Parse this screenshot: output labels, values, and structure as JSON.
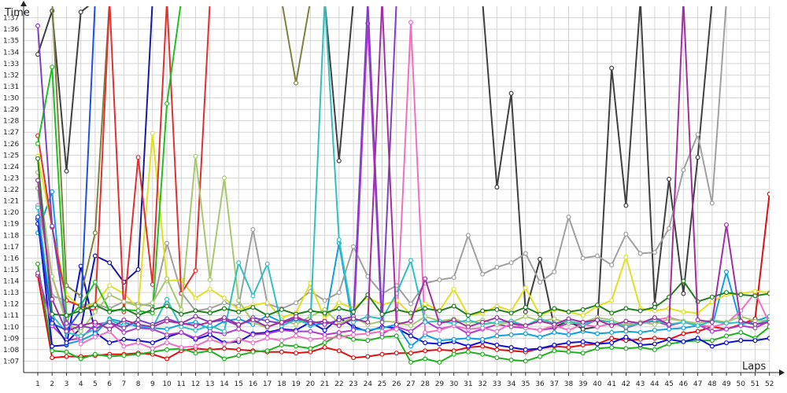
{
  "chart_data": {
    "type": "line",
    "ylabel": "Time",
    "xlabel": "Laps",
    "x": [
      1,
      2,
      3,
      4,
      5,
      6,
      7,
      8,
      9,
      10,
      11,
      12,
      13,
      14,
      15,
      16,
      17,
      18,
      19,
      20,
      21,
      22,
      23,
      24,
      25,
      26,
      27,
      28,
      29,
      30,
      31,
      32,
      33,
      34,
      35,
      36,
      37,
      38,
      39,
      40,
      41,
      42,
      43,
      44,
      45,
      46,
      47,
      48,
      49,
      50,
      51,
      52
    ],
    "x_tick_labels": [
      "1",
      "2",
      "3",
      "4",
      "5",
      "6",
      "7",
      "8",
      "9",
      "10",
      "11",
      "12",
      "13",
      "14",
      "15",
      "16",
      "17",
      "18",
      "19",
      "20",
      "21",
      "22",
      "23",
      "24",
      "25",
      "26",
      "27",
      "28",
      "29",
      "30",
      "31",
      "32",
      "33",
      "34",
      "35",
      "36",
      "37",
      "38",
      "39",
      "40",
      "41",
      "42",
      "43",
      "44",
      "45",
      "46",
      "47",
      "48",
      "49",
      "50",
      "51",
      "52"
    ],
    "y_tick_labels": [
      "1:07",
      "1:08",
      "1:09",
      "1:10",
      "1:11",
      "1:12",
      "1:13",
      "1:14",
      "1:15",
      "1:16",
      "1:17",
      "1:18",
      "1:19",
      "1:20",
      "1:21",
      "1:22",
      "1:23",
      "1:24",
      "1:25",
      "1:26",
      "1:27",
      "1:28",
      "1:29",
      "1:30",
      "1:31",
      "1:32",
      "1:33",
      "1:34",
      "1:35",
      "1:36",
      "1:37"
    ],
    "y_unit": "seconds",
    "ylim": [
      66,
      98
    ],
    "grid": true,
    "series": [
      {
        "color": "#e01010",
        "values": [
          74.5,
          67.3,
          67.4,
          67.4,
          67.5,
          67.6,
          67.6,
          67.7,
          67.6,
          67.2,
          67.9,
          68.1,
          68.0,
          68.1,
          68.0,
          67.9,
          67.8,
          67.8,
          67.7,
          67.8,
          68.2,
          67.9,
          67.3,
          67.4,
          67.6,
          67.7,
          67.7,
          67.9,
          68.0,
          67.9,
          68.2,
          68.3,
          68.0,
          67.9,
          67.8,
          68.1,
          68.3,
          68.2,
          68.4,
          68.5,
          69.0,
          68.8,
          68.9,
          69.0,
          68.9,
          69.4,
          69.6,
          70.0,
          69.8,
          70.2,
          70.7,
          81.6
        ]
      },
      {
        "color": "#20b020",
        "values": [
          75.5,
          67.9,
          67.8,
          67.2,
          67.6,
          67.4,
          67.5,
          67.6,
          67.8,
          68.0,
          68.1,
          67.7,
          67.9,
          67.2,
          67.5,
          67.8,
          67.9,
          68.4,
          68.3,
          68.1,
          68.6,
          69.3,
          68.9,
          68.8,
          69.1,
          69.2,
          66.9,
          67.2,
          66.9,
          67.6,
          67.8,
          67.6,
          67.3,
          67.1,
          67.0,
          67.4,
          67.9,
          67.8,
          67.7,
          68.1,
          68.2,
          68.1,
          68.2,
          68.0,
          68.5,
          68.7,
          68.8,
          68.8,
          69.2,
          69.5,
          69.0,
          70.0
        ]
      },
      {
        "color": "#1010d0",
        "values": [
          79.4,
          68.3,
          68.4,
          75.3,
          69.5,
          68.6,
          68.9,
          68.8,
          68.6,
          69.1,
          69.5,
          68.9,
          69.3,
          68.6,
          68.7,
          69.4,
          69.5,
          69.8,
          69.7,
          70.4,
          69.7,
          70.8,
          70.0,
          69.6,
          70.0,
          69.9,
          69.2,
          68.6,
          68.5,
          68.7,
          68.3,
          68.7,
          68.4,
          68.2,
          68.0,
          68.1,
          68.4,
          68.6,
          68.7,
          68.5,
          68.6,
          69.1,
          68.4,
          68.5,
          68.9,
          68.7,
          69.0,
          68.3,
          68.6,
          68.8,
          68.8,
          69.0
        ]
      },
      {
        "color": "#10a0e0",
        "values": [
          78.2,
          81.8,
          68.5,
          68.8,
          69.4,
          70.7,
          70.4,
          70.0,
          69.9,
          69.8,
          70.2,
          70.4,
          69.8,
          70.5,
          70.7,
          70.2,
          71.0,
          70.4,
          70.8,
          70.1,
          70.3,
          77.3,
          69.8,
          69.7,
          69.9,
          70.2,
          68.3,
          69.3,
          68.8,
          68.9,
          69.0,
          68.9,
          69.2,
          69.3,
          69.4,
          69.1,
          69.5,
          69.3,
          69.6,
          69.4,
          69.5,
          69.6,
          69.5,
          69.7,
          69.8,
          69.9,
          70.1,
          70.0,
          74.8,
          70.2,
          70.5,
          70.9
        ]
      },
      {
        "color": "#b03bd0",
        "values": [
          74.7,
          70.1,
          68.8,
          69.0,
          70.2,
          70.4,
          69.5,
          69.9,
          69.8,
          69.3,
          69.5,
          69.0,
          69.6,
          69.4,
          69.8,
          69.3,
          69.4,
          69.7,
          69.6,
          69.6,
          69.3,
          69.5,
          69.7,
          96.5,
          69.4,
          70.0,
          69.6,
          70.5,
          69.8,
          70.1,
          69.4,
          69.8,
          70.2,
          70.0,
          69.9,
          69.7,
          69.9,
          70.3,
          70.1,
          70.6,
          70.4,
          69.9,
          70.3,
          70.5,
          70.1,
          70.4,
          70.2,
          69.6,
          69.8,
          70.1,
          69.9,
          70.5
        ]
      },
      {
        "color": "#404040",
        "values": [
          93.8,
          97.6,
          83.6,
          97.5,
          98.5,
          98.5,
          98.5,
          98.5,
          98.5,
          98.5,
          98.5,
          98.5,
          98.5,
          98.5,
          98.5,
          98.5,
          98.5,
          98.5,
          98.5,
          98.5,
          98.5,
          84.5,
          98.5,
          98.5,
          98.5,
          98.5,
          98.5,
          98.5,
          98.5,
          98.5,
          98.5,
          98.5,
          82.2,
          90.4,
          71.3,
          75.9,
          70.0,
          70.5,
          69.8,
          70.0,
          92.6,
          80.6,
          98.5,
          72.0,
          82.9,
          72.9,
          84.8,
          98.5,
          98.5,
          98.5,
          98.5,
          98.5
        ]
      },
      {
        "color": "#808040",
        "values": [
          98.5,
          98.5,
          73.6,
          72.7,
          78.2,
          98.5,
          98.5,
          98.5,
          98.5,
          98.5,
          98.5,
          98.5,
          98.5,
          98.5,
          98.5,
          98.5,
          98.5,
          98.5,
          91.3,
          98.5,
          98.5,
          98.5,
          98.5,
          98.5,
          98.5,
          98.5,
          98.5,
          98.5,
          98.5,
          98.5,
          98.5,
          98.5,
          98.5,
          98.5,
          98.5,
          98.5,
          98.5,
          98.5,
          98.5,
          98.5,
          98.5,
          98.5,
          98.5,
          98.5,
          98.5,
          98.5,
          98.5,
          98.5,
          98.5,
          98.5,
          98.5,
          98.5
        ]
      },
      {
        "color": "#f070c0",
        "values": [
          80.6,
          74.4,
          70.6,
          68.5,
          69.1,
          69.6,
          68.3,
          68.6,
          68.1,
          68.6,
          68.2,
          68.3,
          68.9,
          68.5,
          68.9,
          68.6,
          69.0,
          68.8,
          69.2,
          68.9,
          69.0,
          69.1,
          69.3,
          69.4,
          69.6,
          69.8,
          96.6,
          69.5,
          69.7,
          70.1,
          69.8,
          69.9,
          69.6,
          70.3,
          69.9,
          69.7,
          70.1,
          69.7,
          70.2,
          70.0,
          70.3,
          70.2,
          70.4,
          70.6,
          70.8,
          70.5,
          70.2,
          70.0,
          70.3,
          71.4,
          73.0,
          70.3
        ]
      },
      {
        "color": "#a0a0a0",
        "values": [
          82.1,
          72.7,
          72.3,
          71.9,
          72.0,
          71.6,
          72.2,
          72.0,
          71.8,
          77.3,
          73.0,
          71.4,
          71.6,
          72.1,
          71.8,
          78.5,
          72.0,
          71.6,
          72.1,
          73.1,
          72.3,
          73.0,
          77.0,
          74.4,
          72.9,
          73.6,
          72.0,
          73.8,
          74.1,
          74.3,
          78.0,
          74.6,
          75.2,
          75.6,
          76.4,
          73.9,
          74.8,
          79.6,
          76.0,
          76.2,
          75.4,
          78.1,
          76.4,
          76.5,
          78.6,
          83.7,
          86.8,
          80.8,
          98.5,
          98.5,
          98.5,
          98.5
        ]
      },
      {
        "color": "#e0e020",
        "values": [
          84.9,
          78.7,
          72.8,
          71.7,
          72.0,
          73.6,
          72.9,
          71.6,
          86.9,
          74.0,
          74.1,
          72.5,
          73.3,
          72.5,
          71.5,
          71.9,
          72.1,
          70.8,
          71.2,
          73.8,
          70.7,
          72.1,
          71.6,
          72.6,
          71.9,
          72.3,
          71.1,
          72.0,
          71.4,
          73.3,
          71.0,
          71.2,
          71.8,
          71.4,
          73.4,
          71.0,
          71.5,
          71.3,
          71.0,
          71.8,
          72.3,
          76.1,
          71.6,
          71.4,
          71.6,
          71.3,
          71.2,
          72.2,
          72.8,
          72.9,
          73.1,
          73.0
        ]
      },
      {
        "color": "#1a1aa0",
        "values": [
          79.0,
          70.6,
          68.6,
          69.9,
          76.2,
          75.6,
          73.9,
          75.0,
          98.5,
          98.5,
          98.5,
          98.5,
          98.5,
          98.5,
          98.5,
          98.5,
          98.5,
          98.5,
          98.5,
          98.5,
          98.5,
          98.5,
          98.5,
          98.5,
          98.5,
          98.5,
          98.5,
          98.5,
          98.5,
          98.5,
          98.5,
          98.5,
          98.5,
          98.5,
          98.5,
          98.5,
          98.5,
          98.5,
          98.5,
          98.5,
          98.5,
          98.5,
          98.5,
          98.5,
          98.5,
          98.5,
          98.5,
          98.5,
          98.5,
          98.5,
          98.5,
          98.5
        ]
      },
      {
        "color": "#e03030",
        "values": [
          86.7,
          78.7,
          72.3,
          71.8,
          71.4,
          98.5,
          71.3,
          84.8,
          73.7,
          98.5,
          72.9,
          74.9,
          98.5,
          98.5,
          98.5,
          98.5,
          98.5,
          98.5,
          98.5,
          98.5,
          98.5,
          98.5,
          98.5,
          98.5,
          98.5,
          98.5,
          98.5,
          98.5,
          98.5,
          98.5,
          98.5,
          98.5,
          98.5,
          98.5,
          98.5,
          98.5,
          98.5,
          98.5,
          98.5,
          98.5,
          98.5,
          98.5,
          98.5,
          98.5,
          98.5,
          98.5,
          98.5,
          98.5,
          98.5,
          98.5,
          98.5,
          98.5
        ]
      },
      {
        "color": "#20c020",
        "values": [
          86.0,
          92.7,
          70.7,
          71.9,
          73.9,
          71.4,
          71.5,
          71.4,
          71.2,
          89.5,
          98.5,
          98.5,
          98.5,
          98.5,
          98.5,
          98.5,
          98.5,
          98.5,
          98.5,
          98.5,
          98.5,
          98.5,
          98.5,
          98.5,
          98.5,
          98.5,
          98.5,
          98.5,
          98.5,
          98.5,
          98.5,
          98.5,
          98.5,
          98.5,
          98.5,
          98.5,
          98.5,
          98.5,
          98.5,
          98.5,
          98.5,
          98.5,
          98.5,
          98.5,
          98.5,
          98.5,
          98.5,
          98.5,
          98.5,
          98.5,
          98.5,
          98.5
        ]
      },
      {
        "color": "#a8c870",
        "values": [
          83.5,
          74.4,
          70.3,
          69.6,
          71.3,
          72.8,
          72.2,
          71.8,
          72.1,
          74.2,
          71.5,
          84.9,
          74.1,
          83.0,
          72.3,
          70.4,
          69.9,
          70.6,
          70.2,
          70.9,
          71.5,
          70.3,
          70.8,
          70.2,
          70.5,
          70.4,
          70.1,
          70.9,
          70.5,
          70.7,
          70.3,
          70.6,
          70.2,
          70.4,
          70.9,
          70.5,
          70.7,
          70.3,
          70.4,
          70.8,
          70.6,
          70.1,
          70.4,
          70.2,
          70.7,
          70.5,
          70.3,
          70.6,
          70.4,
          70.9,
          70.5,
          70.6
        ]
      },
      {
        "color": "#30c0c0",
        "values": [
          80.4,
          71.0,
          69.5,
          69.2,
          69.8,
          70.6,
          70.1,
          70.2,
          69.9,
          72.4,
          70.0,
          69.7,
          70.1,
          69.6,
          75.6,
          72.7,
          75.5,
          70.1,
          70.6,
          70.2,
          98.5,
          77.6,
          70.4,
          70.9,
          70.7,
          72.9,
          75.8,
          70.4,
          70.5,
          70.3,
          70.6,
          70.2,
          70.4,
          70.5,
          70.1,
          70.7,
          70.3,
          70.5,
          70.2,
          70.6,
          70.4,
          70.0,
          70.3,
          70.6,
          70.2,
          70.4,
          70.1,
          70.5,
          70.3,
          70.4,
          70.2,
          70.6
        ]
      },
      {
        "color": "#2050e0",
        "values": [
          79.6,
          70.3,
          69.7,
          71.4,
          98.5,
          98.5,
          98.5,
          98.5,
          98.5,
          98.5,
          98.5,
          98.5,
          98.5,
          98.5,
          98.5,
          98.5,
          98.5,
          98.5,
          98.5,
          98.5,
          98.5,
          98.5,
          98.5,
          98.5,
          98.5,
          98.5,
          98.5,
          98.5,
          98.5,
          98.5,
          98.5,
          98.5,
          98.5,
          98.5,
          98.5,
          98.5,
          98.5,
          98.5,
          98.5,
          98.5,
          98.5,
          98.5,
          98.5,
          98.5,
          98.5,
          98.5,
          98.5,
          98.5,
          98.5,
          98.5,
          98.5,
          98.5
        ]
      },
      {
        "color": "#8040c0",
        "values": [
          96.3,
          78.8,
          70.3,
          70.1,
          69.8,
          70.4,
          69.9,
          70.6,
          70.2,
          70.7,
          70.3,
          70.9,
          70.4,
          70.6,
          70.1,
          70.8,
          70.5,
          70.3,
          70.7,
          70.5,
          70.2,
          70.6,
          70.9,
          98.5,
          70.4,
          98.5,
          98.5,
          98.5,
          98.5,
          98.5,
          98.5,
          98.5,
          98.5,
          98.5,
          98.5,
          98.5,
          98.5,
          98.5,
          98.5,
          98.5,
          98.5,
          98.5,
          98.5,
          98.5,
          98.5,
          98.5,
          98.5,
          98.5,
          98.5,
          98.5,
          98.5,
          98.5
        ]
      },
      {
        "color": "#208020",
        "values": [
          84.7,
          71.1,
          71.0,
          71.4,
          71.9,
          71.3,
          71.6,
          71.0,
          71.5,
          71.8,
          71.1,
          71.4,
          71.2,
          71.6,
          71.3,
          71.7,
          71.0,
          71.5,
          71.1,
          71.4,
          71.2,
          71.6,
          71.3,
          72.8,
          71.1,
          71.5,
          71.2,
          71.6,
          71.4,
          71.8,
          71.0,
          71.4,
          71.5,
          71.2,
          71.7,
          71.1,
          71.6,
          71.3,
          71.5,
          71.9,
          71.2,
          71.6,
          71.4,
          71.7,
          72.6,
          74.0,
          72.2,
          72.6,
          73.0,
          72.8,
          72.7,
          72.9
        ]
      },
      {
        "color": "#a030a0",
        "values": [
          82.8,
          72.4,
          69.6,
          70.1,
          70.4,
          69.8,
          70.6,
          70.2,
          70.0,
          70.5,
          70.3,
          70.1,
          70.4,
          70.8,
          70.2,
          70.6,
          70.0,
          70.4,
          70.9,
          70.3,
          70.5,
          70.1,
          70.7,
          70.4,
          98.5,
          70.2,
          70.5,
          74.2,
          70.3,
          70.6,
          70.0,
          70.4,
          70.8,
          70.3,
          70.1,
          70.5,
          70.2,
          70.7,
          70.4,
          70.6,
          70.1,
          70.5,
          70.3,
          70.8,
          70.2,
          98.5,
          70.6,
          70.4,
          78.9,
          70.5,
          70.2,
          70.4
        ]
      }
    ]
  }
}
